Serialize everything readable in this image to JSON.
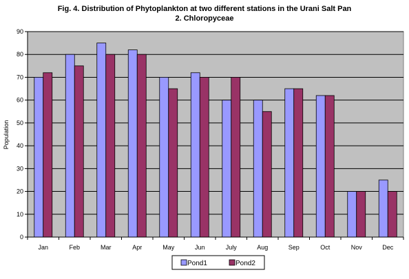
{
  "chart_data": {
    "type": "bar",
    "title": "Fig. 4. Distribution of Phytoplankton at two different stations in the Urani Salt Pan",
    "subtitle": "2. Chloropyceae",
    "xlabel": "",
    "ylabel": "Population",
    "ylim": [
      0,
      90
    ],
    "yticks": [
      0,
      10,
      20,
      30,
      40,
      50,
      60,
      70,
      80,
      90
    ],
    "grid": true,
    "legend_position": "bottom",
    "categories": [
      "Jan",
      "Feb",
      "Mar",
      "Apr",
      "May",
      "Jun",
      "July",
      "Aug",
      "Sep",
      "Oct",
      "Nov",
      "Dec"
    ],
    "series": [
      {
        "name": "Pond1",
        "color": "#9999FF",
        "values": [
          70,
          80,
          85,
          82,
          70,
          72,
          60,
          60,
          65,
          62,
          20,
          25
        ]
      },
      {
        "name": "Pond2",
        "color": "#993366",
        "values": [
          72,
          75,
          80,
          80,
          65,
          70,
          70,
          55,
          65,
          62,
          20,
          20
        ]
      }
    ],
    "plot_background": "#C0C0C0"
  }
}
